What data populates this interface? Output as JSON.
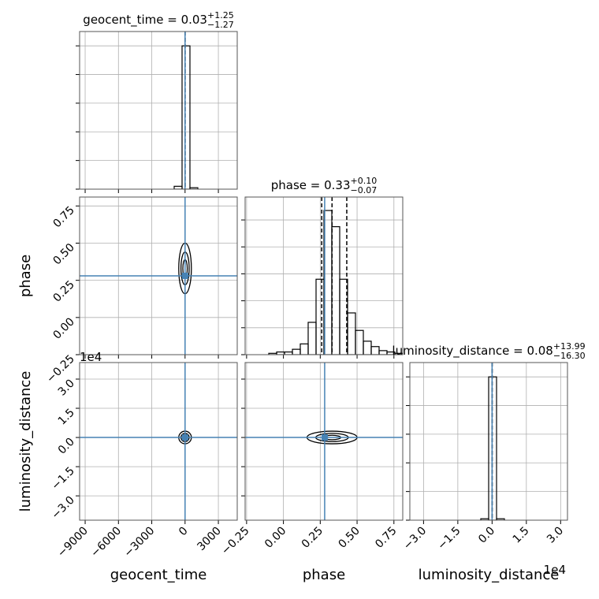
{
  "chart_data": {
    "type": "corner",
    "truth_color": "#4682b4",
    "parameters": [
      {
        "name": "geocent_time",
        "title": {
          "text": "geocent_time = 0.03",
          "plus": "+1.25",
          "minus": "−1.27"
        },
        "quantiles": [
          -1.24,
          0.03,
          1.28
        ],
        "truth": 0,
        "xlim": [
          -9500,
          4700
        ],
        "ticks": [
          {
            "value": -9000,
            "label": "−9000"
          },
          {
            "value": -6000,
            "label": "−6000"
          },
          {
            "value": -3000,
            "label": "−3000"
          },
          0,
          3000
        ],
        "bins": [
          -9500,
          -8790,
          -8080,
          -7370,
          -6660,
          -5950,
          -5240,
          -4530,
          -3820,
          -3110,
          -2400,
          -1690,
          -980,
          -270,
          440,
          1150,
          1860,
          2570,
          3280,
          3990,
          4700
        ],
        "counts": [
          0,
          0,
          0,
          0,
          0,
          0,
          0,
          0,
          0,
          0,
          0,
          0,
          2,
          100,
          1,
          0,
          0,
          0,
          0,
          0
        ],
        "hist_ylim": [
          0,
          110
        ],
        "hist_yticks": [
          0,
          20,
          40,
          60,
          80,
          100
        ]
      },
      {
        "name": "phase",
        "title": {
          "text": "phase = 0.33",
          "plus": "+0.10",
          "minus": "−0.07"
        },
        "quantiles": [
          0.26,
          0.33,
          0.43
        ],
        "truth": 0.28,
        "xlim": [
          -0.26,
          0.81
        ],
        "ylim": [
          -0.25,
          0.81
        ],
        "ticks": [
          {
            "value": -0.25,
            "label": "−0.25"
          },
          {
            "value": 0,
            "label": "0.00"
          },
          0.25,
          {
            "value": 0.5,
            "label": "0.50"
          },
          0.75
        ],
        "bins": [
          -0.26,
          -0.2065,
          -0.153,
          -0.0995,
          -0.046,
          0.0075,
          0.061,
          0.1145,
          0.168,
          0.2215,
          0.275,
          0.3285,
          0.382,
          0.4355,
          0.489,
          0.5425,
          0.596,
          0.6495,
          0.703,
          0.7565,
          0.81
        ],
        "counts": [
          0,
          0,
          0,
          1,
          2,
          2,
          4,
          8,
          24,
          56,
          107,
          95,
          56,
          31,
          18,
          10,
          6,
          3,
          2,
          1
        ],
        "hist_ylim": [
          0,
          117
        ],
        "hist_yticks": [
          0,
          20,
          40,
          60,
          80,
          100
        ]
      },
      {
        "name": "luminosity_distance",
        "title": {
          "text": "luminosity_distance = 0.08",
          "plus": "+13.99",
          "minus": "−16.30"
        },
        "offset": "1e4",
        "quantiles": [
          -0.00162,
          8e-06,
          0.001407
        ],
        "truth": 0,
        "xlim": [
          -3.6,
          3.3
        ],
        "ylim": [
          -4.25,
          3.85
        ],
        "ticks": [
          {
            "value": -3,
            "label": "−3.0"
          },
          {
            "value": -1.5,
            "label": "−1.5"
          },
          {
            "value": 0,
            "label": "0.0"
          },
          1.5,
          {
            "value": 3,
            "label": "3.0"
          }
        ],
        "bins": [
          -3.6,
          -3.255,
          -2.91,
          -2.565,
          -2.22,
          -1.875,
          -1.53,
          -1.185,
          -0.84,
          -0.495,
          -0.15,
          0.195,
          0.54,
          0.885,
          1.23,
          1.575,
          1.92,
          2.265,
          2.61,
          2.955,
          3.3
        ],
        "counts": [
          0,
          0,
          0,
          0,
          0,
          0,
          0,
          0,
          0,
          1,
          100,
          1,
          0,
          0,
          0,
          0,
          0,
          0,
          0,
          0
        ],
        "hist_ylim": [
          0,
          110
        ],
        "hist_yticks": [
          0,
          20,
          40,
          60,
          80,
          100
        ]
      }
    ]
  }
}
